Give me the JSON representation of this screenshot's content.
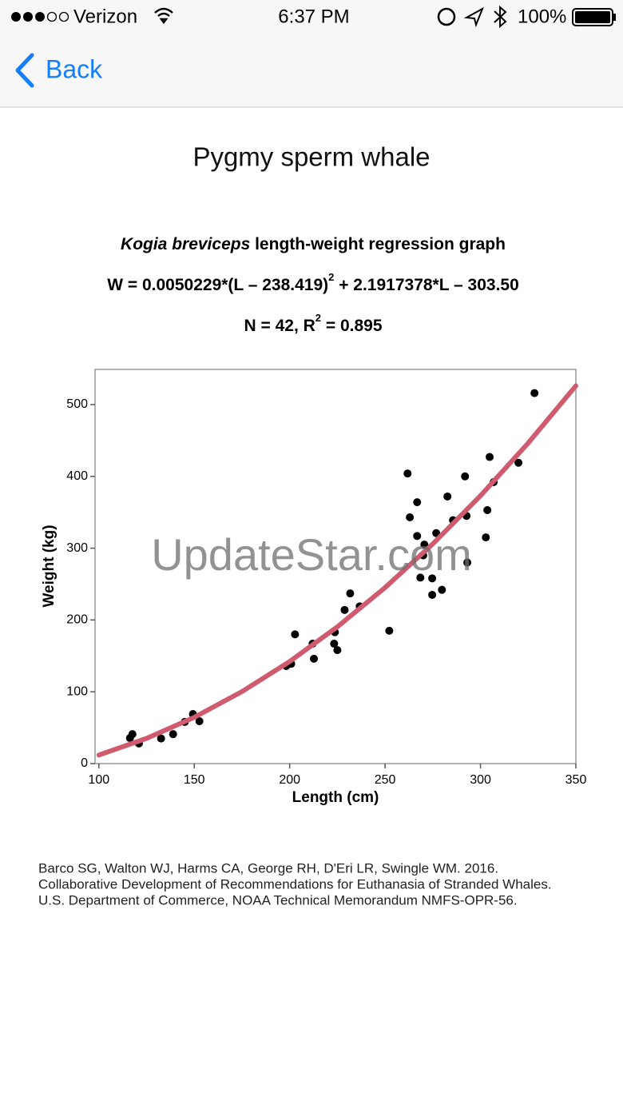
{
  "status_bar": {
    "carrier": "Verizon",
    "time": "6:37 PM",
    "battery": "100%"
  },
  "nav": {
    "back": "Back"
  },
  "page_title": "Pygmy sperm whale",
  "watermark": "UpdateStar.com",
  "chart_data": {
    "type": "scatter",
    "title": {
      "species": "Kogia breviceps",
      "text": " length-weight regression graph"
    },
    "equation": [
      "W = 0.0050229*(L – 238.419)",
      "2",
      " + 2.1917378*L – 303.50"
    ],
    "stats": [
      "N = 42, R",
      "2",
      " = 0.895"
    ],
    "x_label": "Length (cm)",
    "y_label": "Weight (kg)",
    "xlim": [
      98,
      350
    ],
    "ylim": [
      0,
      549
    ],
    "xticks": [
      100,
      150,
      200,
      250,
      300,
      350
    ],
    "yticks": [
      0,
      100,
      200,
      300,
      400,
      500
    ],
    "color": "#000000",
    "x": [
      116.3,
      117.6,
      121,
      132.6,
      138.9,
      145,
      149.3,
      152.7,
      198.2,
      200.8,
      202.8,
      212,
      212.7,
      223.3,
      223.7,
      225,
      228.8,
      231.7,
      236.7,
      252.2,
      261.8,
      263,
      266.8,
      266.8,
      268.5,
      270,
      270.6,
      274.7,
      274.7,
      276.8,
      279.8,
      282.7,
      285.6,
      291.9,
      292.7,
      293.1,
      302.8,
      303.6,
      304.8,
      306.9,
      319.9,
      328.3
    ],
    "values": [
      35.6,
      41,
      28,
      35,
      41,
      58,
      69,
      59,
      135.9,
      139,
      180,
      167,
      146,
      167,
      183,
      158,
      214,
      237,
      219,
      185,
      404,
      343,
      364,
      317,
      259,
      290,
      305,
      258,
      235,
      321,
      242,
      372,
      339,
      400,
      345,
      280,
      315,
      353,
      427,
      392,
      419,
      516
    ],
    "fit": {
      "color": "#d05a6e",
      "x": [
        100,
        125,
        150,
        175,
        200,
        225,
        250,
        275,
        300,
        325,
        350
      ],
      "values": [
        11.91,
        35.08,
        64.53,
        100.25,
        142.26,
        190.54,
        245.1,
        305.95,
        373.07,
        446.46,
        526.15
      ]
    },
    "citation": [
      "Barco SG, Walton WJ, Harms CA, George RH, D'Eri LR, Swingle WM. 2016.",
      "Collaborative Development of Recommendations for Euthanasia of Stranded Whales.",
      "U.S. Department of Commerce, NOAA Technical Memorandum NMFS-OPR-56."
    ]
  }
}
